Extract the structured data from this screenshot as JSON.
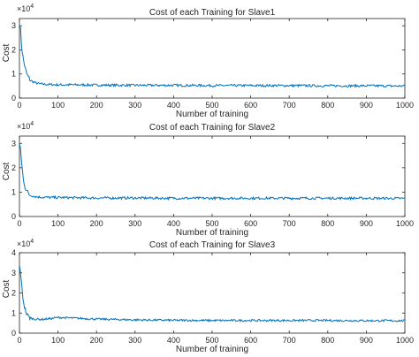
{
  "chart_data": [
    {
      "type": "line",
      "title": "Cost of each Training for Slave1",
      "xlabel": "Number of training",
      "ylabel": "Cost",
      "exponent_label": "×10",
      "exponent_power": "4",
      "xlim": [
        0,
        1000
      ],
      "ylim": [
        0,
        3.3
      ],
      "xticks": [
        0,
        100,
        200,
        300,
        400,
        500,
        600,
        700,
        800,
        900,
        1000
      ],
      "yticks": [
        0,
        1,
        2,
        3
      ],
      "grid": false,
      "line_color": "#0072bd",
      "series": [
        {
          "x": [
            1,
            3,
            5,
            8,
            12,
            16,
            20,
            25,
            30,
            40,
            50,
            60,
            80,
            100,
            150,
            200,
            300,
            400,
            500,
            600,
            700,
            800,
            900,
            1000
          ],
          "values": [
            3.1,
            2.8,
            2.3,
            1.8,
            1.45,
            1.15,
            0.95,
            0.82,
            0.72,
            0.64,
            0.6,
            0.58,
            0.56,
            0.55,
            0.55,
            0.54,
            0.53,
            0.53,
            0.52,
            0.52,
            0.52,
            0.51,
            0.51,
            0.5
          ]
        }
      ]
    },
    {
      "type": "line",
      "title": "Cost of each Training for Slave2",
      "xlabel": "Number of training",
      "ylabel": "Cost",
      "exponent_label": "×10",
      "exponent_power": "4",
      "xlim": [
        0,
        1000
      ],
      "ylim": [
        0,
        3.3
      ],
      "xticks": [
        0,
        100,
        200,
        300,
        400,
        500,
        600,
        700,
        800,
        900,
        1000
      ],
      "yticks": [
        0,
        1,
        2,
        3
      ],
      "grid": false,
      "line_color": "#0072bd",
      "series": [
        {
          "x": [
            1,
            3,
            5,
            8,
            12,
            16,
            20,
            25,
            30,
            40,
            50,
            60,
            80,
            100,
            150,
            200,
            300,
            400,
            500,
            600,
            700,
            800,
            900,
            1000
          ],
          "values": [
            3.0,
            2.75,
            2.3,
            1.8,
            1.4,
            1.15,
            1.0,
            0.92,
            0.87,
            0.82,
            0.8,
            0.79,
            0.78,
            0.78,
            0.77,
            0.76,
            0.76,
            0.75,
            0.75,
            0.75,
            0.75,
            0.75,
            0.75,
            0.74
          ]
        }
      ]
    },
    {
      "type": "line",
      "title": "Cost of each Training for Slave3",
      "xlabel": "Number of training",
      "ylabel": "Cost",
      "exponent_label": "×10",
      "exponent_power": "4",
      "xlim": [
        0,
        1000
      ],
      "ylim": [
        0,
        4
      ],
      "xticks": [
        0,
        100,
        200,
        300,
        400,
        500,
        600,
        700,
        800,
        900,
        1000
      ],
      "yticks": [
        0,
        1,
        2,
        3,
        4
      ],
      "grid": false,
      "line_color": "#0072bd",
      "series": [
        {
          "x": [
            1,
            3,
            5,
            8,
            12,
            16,
            20,
            25,
            30,
            40,
            50,
            60,
            80,
            100,
            150,
            200,
            300,
            400,
            500,
            600,
            700,
            800,
            900,
            1000
          ],
          "values": [
            3.3,
            3.0,
            2.5,
            1.9,
            1.4,
            1.1,
            0.9,
            0.8,
            0.74,
            0.7,
            0.69,
            0.69,
            0.72,
            0.78,
            0.74,
            0.7,
            0.66,
            0.64,
            0.63,
            0.63,
            0.63,
            0.63,
            0.62,
            0.62
          ]
        }
      ]
    }
  ]
}
